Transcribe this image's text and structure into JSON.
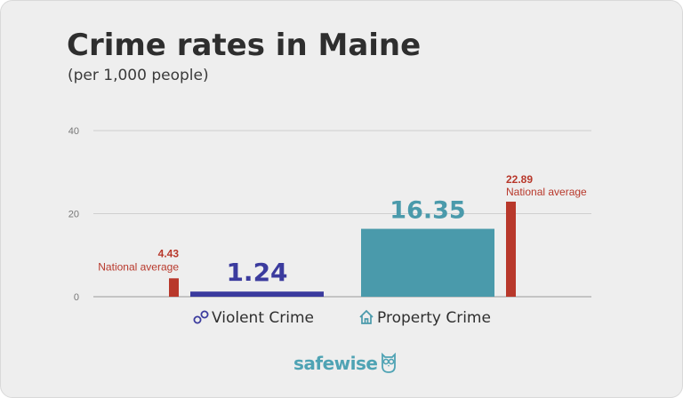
{
  "title": "Crime rates in Maine",
  "subtitle": "(per 1,000 people)",
  "logo_text": "safewise",
  "colors": {
    "background": "#eeeeee",
    "violent": "#3b3b9e",
    "property": "#4a9aab",
    "national": "#b8382b",
    "value_property": "#4a9aab"
  },
  "chart_data": {
    "type": "bar",
    "ylim": [
      0,
      40
    ],
    "yticks": [
      0,
      20,
      40
    ],
    "grid": true,
    "categories": [
      {
        "label": "Violent Crime",
        "icon": "handcuffs-icon",
        "value": 1.24,
        "value_label": "1.24",
        "national_average": 4.43,
        "national_value_label": "4.43",
        "national_text": "National average"
      },
      {
        "label": "Property Crime",
        "icon": "house-icon",
        "value": 16.35,
        "value_label": "16.35",
        "national_average": 22.89,
        "national_value_label": "22.89",
        "national_text": "National average"
      }
    ]
  }
}
